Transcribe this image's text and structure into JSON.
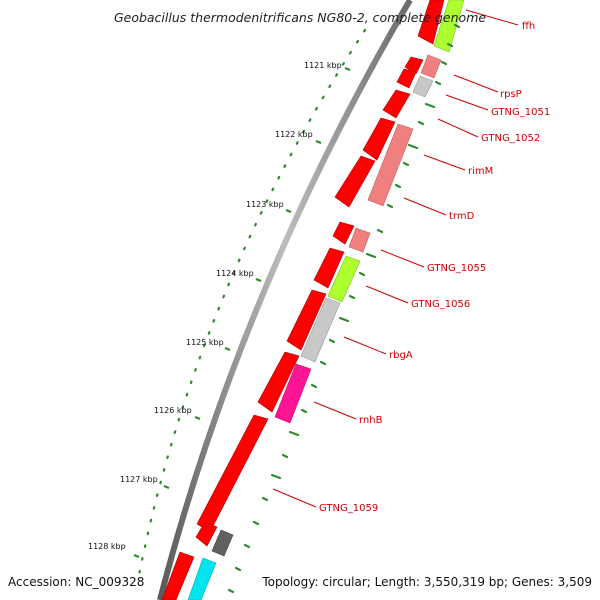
{
  "title": "Geobacillus thermodenitrificans NG80-2, complete genome",
  "accession": "Accession: NC_009328",
  "summary": "Topology: circular; Length: 3,550,319 bp; Genes: 3,509",
  "colors": {
    "backbone": "#8a8a8a",
    "forward_cds": "#ff0000",
    "tick": "#2e8b2e",
    "label": "#cc0000",
    "cog_lightred": "#f08080",
    "cog_lime": "#adff2f",
    "cog_gray": "#c8c8c8",
    "cog_pink": "#ff1493",
    "cog_cyan": "#00e5ee",
    "cog_darkgray": "#606060"
  },
  "scale_labels": [
    "1121 kbp",
    "1122 kbp",
    "1123 kbp",
    "1124 kbp",
    "1125 kbp",
    "1126 kbp",
    "1127 kbp",
    "1128 kbp"
  ],
  "gene_labels": [
    "ffh",
    "rpsP",
    "GTNG_1051",
    "GTNG_1052",
    "rimM",
    "trmD",
    "GTNG_1055",
    "GTNG_1056",
    "rbgA",
    "rnhB",
    "GTNG_1059"
  ]
}
